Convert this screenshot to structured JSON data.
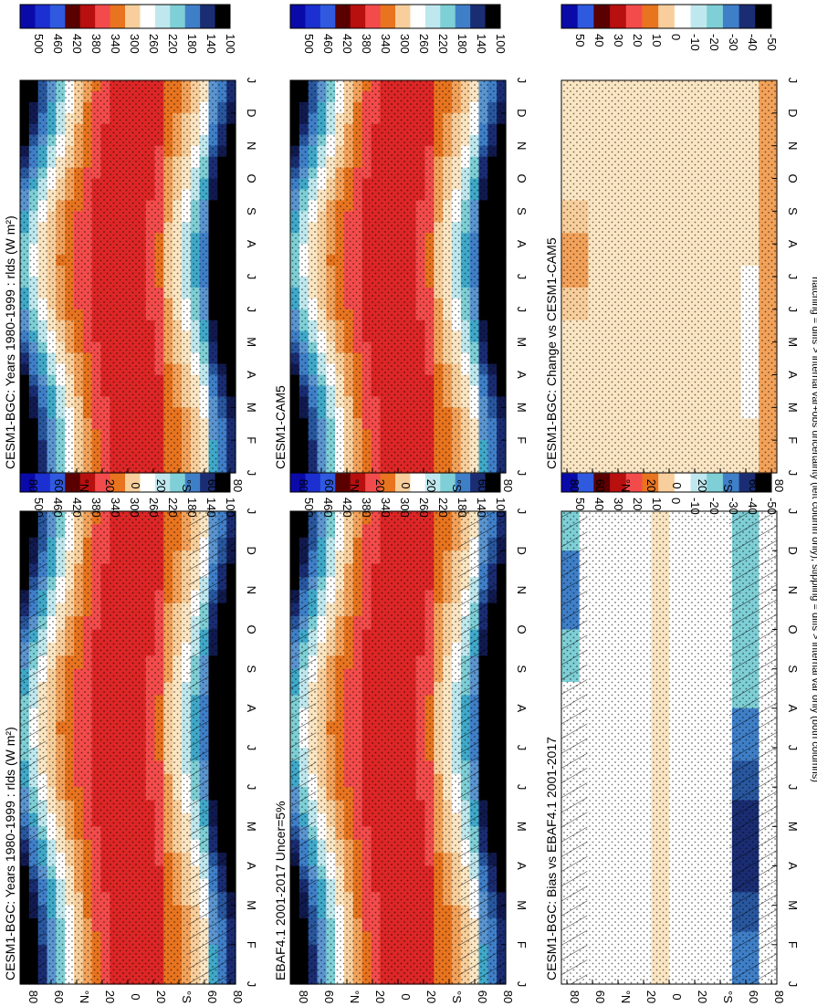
{
  "figure": {
    "footnote": "hatching = diffs > internal var+obs uncertainty (left column only); stippling = diffs > internal var only (both columns)"
  },
  "palette": [
    "#0a0aa8",
    "#1f3fd8",
    "#2f6ee8",
    "#e9f5fb",
    "#7ecfd6",
    "#40a9c9",
    "#3f7fc8",
    "#28579f",
    "#1a2d73",
    "#000000"
  ],
  "warm_palette": [
    "#5a0000",
    "#8b0000",
    "#b80f0f",
    "#dd2626",
    "#f34b4b",
    "#f57a3a",
    "#e8741f",
    "#f3a25a",
    "#f8cf9c",
    "#fbe6c3",
    "#ffffff"
  ],
  "chart_data": [
    {
      "id": "tl",
      "type": "heatmap",
      "title": "CESM1-BGC: Years 1980-1999 : rlds (W m²)",
      "x_ticks": [
        "J",
        "F",
        "M",
        "A",
        "M",
        "J",
        "J",
        "A",
        "S",
        "O",
        "N",
        "D",
        "J"
      ],
      "y_ticks": [
        "80",
        "60",
        "°N",
        "20",
        "0",
        "20",
        "°S",
        "60",
        "80"
      ],
      "colorbar_labels": [
        "500",
        "460",
        "420",
        "380",
        "340",
        "300",
        "260",
        "220",
        "180",
        "140",
        "100"
      ],
      "field": "abs",
      "hatching": true,
      "stippling": true,
      "value_range": [
        100,
        500
      ]
    },
    {
      "id": "tr",
      "type": "heatmap",
      "title": "CESM1-BGC: Years 1980-1999 : rlds (W m²)",
      "x_ticks": [
        "J",
        "F",
        "M",
        "A",
        "M",
        "J",
        "J",
        "A",
        "S",
        "O",
        "N",
        "D",
        "J"
      ],
      "y_ticks": [
        "80",
        "60",
        "°N",
        "20",
        "0",
        "20",
        "°S",
        "60",
        "80"
      ],
      "colorbar_labels": [
        "500",
        "460",
        "420",
        "380",
        "340",
        "300",
        "260",
        "220",
        "180",
        "140",
        "100"
      ],
      "field": "abs",
      "hatching": false,
      "stippling": true,
      "value_range": [
        100,
        500
      ]
    },
    {
      "id": "ml",
      "type": "heatmap",
      "title": "EBAF4.1 2001-2017 Uncer=5%",
      "x_ticks": [
        "J",
        "F",
        "M",
        "A",
        "M",
        "J",
        "J",
        "A",
        "S",
        "O",
        "N",
        "D",
        "J"
      ],
      "y_ticks": [
        "80",
        "60",
        "°N",
        "20",
        "0",
        "20",
        "°S",
        "60",
        "80"
      ],
      "colorbar_labels": [
        "500",
        "460",
        "420",
        "380",
        "340",
        "300",
        "260",
        "220",
        "180",
        "140",
        "100"
      ],
      "field": "abs",
      "hatching": true,
      "stippling": true,
      "value_range": [
        100,
        500
      ]
    },
    {
      "id": "mr",
      "type": "heatmap",
      "title": "CESM1-CAM5",
      "x_ticks": [
        "J",
        "F",
        "M",
        "A",
        "M",
        "J",
        "J",
        "A",
        "S",
        "O",
        "N",
        "D",
        "J"
      ],
      "y_ticks": [
        "80",
        "60",
        "°N",
        "20",
        "0",
        "20",
        "°S",
        "60",
        "80"
      ],
      "colorbar_labels": [
        "500",
        "460",
        "420",
        "380",
        "340",
        "300",
        "260",
        "220",
        "180",
        "140",
        "100"
      ],
      "field": "abs",
      "hatching": false,
      "stippling": true,
      "value_range": [
        100,
        500
      ]
    },
    {
      "id": "bl",
      "type": "heatmap",
      "title": "CESM1-BGC: Bias vs EBAF4.1 2001-2017",
      "x_ticks": [
        "J",
        "F",
        "M",
        "A",
        "M",
        "J",
        "J",
        "A",
        "S",
        "O",
        "N",
        "D",
        "J"
      ],
      "y_ticks": [
        "80",
        "60",
        "°N",
        "20",
        "0",
        "20",
        "°S",
        "60",
        "80"
      ],
      "colorbar_labels": [
        "50",
        "40",
        "30",
        "20",
        "10",
        "0",
        "-10",
        "-20",
        "-30",
        "-40",
        "-50"
      ],
      "field": "bias",
      "hatching": true,
      "stippling": true,
      "value_range": [
        -50,
        50
      ]
    },
    {
      "id": "br",
      "type": "heatmap",
      "title": "CESM1-BGC: Change vs CESM1-CAM5",
      "x_ticks": [
        "J",
        "F",
        "M",
        "A",
        "M",
        "J",
        "J",
        "A",
        "S",
        "O",
        "N",
        "D",
        "J"
      ],
      "y_ticks": [
        "80",
        "60",
        "°N",
        "20",
        "0",
        "20",
        "°S",
        "60",
        "80"
      ],
      "colorbar_labels": [
        "50",
        "40",
        "30",
        "20",
        "10",
        "0",
        "-10",
        "-20",
        "-30",
        "-40",
        "-50"
      ],
      "field": "change",
      "hatching": false,
      "stippling": true,
      "value_range": [
        -50,
        50
      ]
    }
  ]
}
